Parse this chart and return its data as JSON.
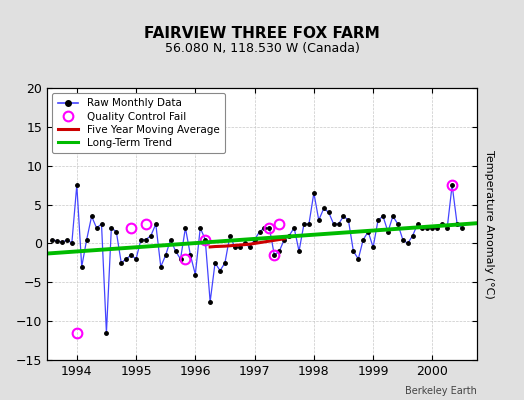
{
  "title": "FAIRVIEW THREE FOX FARM",
  "subtitle": "56.080 N, 118.530 W (Canada)",
  "ylabel": "Temperature Anomaly (°C)",
  "credit": "Berkeley Earth",
  "ylim": [
    -15,
    20
  ],
  "yticks": [
    -15,
    -10,
    -5,
    0,
    5,
    10,
    15,
    20
  ],
  "xlim": [
    1993.5,
    2000.75
  ],
  "xticks": [
    1994,
    1995,
    1996,
    1997,
    1998,
    1999,
    2000
  ],
  "bg_color": "#e0e0e0",
  "plot_bg_color": "#ffffff",
  "raw_x": [
    1993.583,
    1993.667,
    1993.75,
    1993.833,
    1993.917,
    1994.0,
    1994.083,
    1994.167,
    1994.25,
    1994.333,
    1994.417,
    1994.5,
    1994.583,
    1994.667,
    1994.75,
    1994.833,
    1994.917,
    1995.0,
    1995.083,
    1995.167,
    1995.25,
    1995.333,
    1995.417,
    1995.5,
    1995.583,
    1995.667,
    1995.75,
    1995.833,
    1995.917,
    1996.0,
    1996.083,
    1996.167,
    1996.25,
    1996.333,
    1996.417,
    1996.5,
    1996.583,
    1996.667,
    1996.75,
    1996.833,
    1996.917,
    1997.0,
    1997.083,
    1997.167,
    1997.25,
    1997.333,
    1997.417,
    1997.5,
    1997.583,
    1997.667,
    1997.75,
    1997.833,
    1997.917,
    1998.0,
    1998.083,
    1998.167,
    1998.25,
    1998.333,
    1998.417,
    1998.5,
    1998.583,
    1998.667,
    1998.75,
    1998.833,
    1998.917,
    1999.0,
    1999.083,
    1999.167,
    1999.25,
    1999.333,
    1999.417,
    1999.5,
    1999.583,
    1999.667,
    1999.75,
    1999.833,
    1999.917,
    2000.0,
    2000.083,
    2000.167,
    2000.25,
    2000.333,
    2000.417,
    2000.5
  ],
  "raw_y": [
    0.5,
    0.3,
    0.2,
    0.4,
    0.1,
    7.5,
    -3.0,
    0.5,
    3.5,
    2.0,
    2.5,
    -11.5,
    2.0,
    1.5,
    -2.5,
    -2.0,
    -1.5,
    -2.0,
    0.5,
    0.5,
    1.0,
    2.5,
    -3.0,
    -1.5,
    0.5,
    -1.0,
    -2.0,
    2.0,
    -1.5,
    -4.0,
    2.0,
    0.5,
    -7.5,
    -2.5,
    -3.5,
    -2.5,
    1.0,
    -0.5,
    -0.5,
    0.0,
    -0.5,
    0.5,
    1.5,
    2.0,
    2.0,
    -1.5,
    -1.0,
    0.5,
    1.0,
    2.0,
    -1.0,
    2.5,
    2.5,
    6.5,
    3.0,
    4.5,
    4.0,
    2.5,
    2.5,
    3.5,
    3.0,
    -1.0,
    -2.0,
    0.5,
    1.5,
    -0.5,
    3.0,
    3.5,
    1.5,
    3.5,
    2.5,
    0.5,
    0.0,
    1.0,
    2.5,
    2.0,
    2.0,
    2.0,
    2.0,
    2.5,
    2.0,
    7.5,
    2.5,
    2.0
  ],
  "qc_fail_x": [
    1994.0,
    1994.917,
    1995.167,
    1995.833,
    1996.167,
    1997.25,
    1997.333,
    1997.417,
    2000.333
  ],
  "qc_fail_y": [
    -11.5,
    2.0,
    2.5,
    -2.0,
    0.5,
    2.0,
    -1.5,
    2.5,
    7.5
  ],
  "five_year_x": [
    1996.25,
    1996.333,
    1996.5,
    1996.583,
    1996.667,
    1996.75,
    1996.833,
    1996.917,
    1997.0,
    1997.083,
    1997.167,
    1997.25,
    1997.333,
    1997.417,
    1997.5
  ],
  "five_year_y": [
    -0.45,
    -0.4,
    -0.35,
    -0.3,
    -0.25,
    -0.2,
    -0.15,
    -0.1,
    0.0,
    0.1,
    0.2,
    0.3,
    0.4,
    0.5,
    0.6
  ],
  "trend_x": [
    1993.5,
    2000.75
  ],
  "trend_y": [
    -1.3,
    2.6
  ],
  "raw_line_color": "#4444ff",
  "qc_color": "#ff00ff",
  "five_year_color": "#cc0000",
  "trend_color": "#00bb00",
  "grid_color": "#c8c8c8",
  "title_fontsize": 11,
  "subtitle_fontsize": 9,
  "tick_fontsize": 9,
  "ylabel_fontsize": 8
}
